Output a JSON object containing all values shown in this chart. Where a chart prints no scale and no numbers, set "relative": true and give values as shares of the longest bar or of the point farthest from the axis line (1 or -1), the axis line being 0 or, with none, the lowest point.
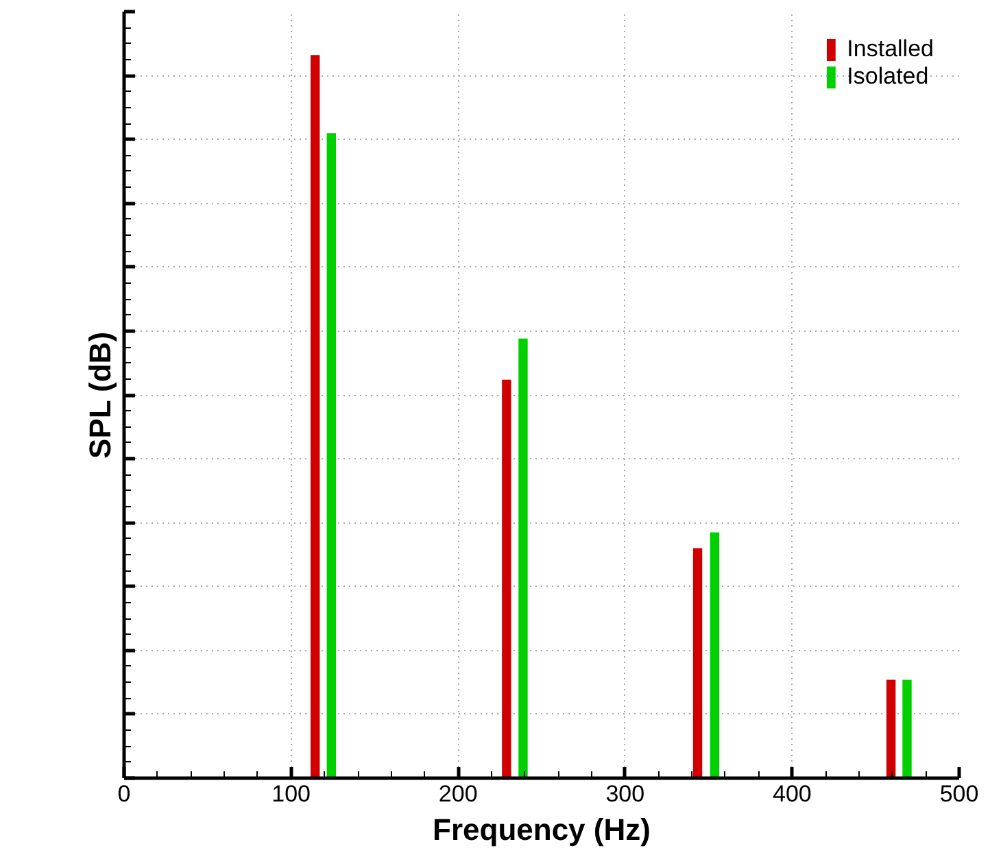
{
  "chart_data": {
    "type": "bar",
    "relative": true,
    "xlabel": "Frequency (Hz)",
    "ylabel": "SPL (dB)",
    "xlim": [
      0,
      500
    ],
    "xticks": [
      0,
      100,
      200,
      300,
      400,
      500
    ],
    "series": [
      {
        "name": "Installed",
        "color": "#d00000",
        "x": [
          114.4,
          229,
          343.4,
          459.2
        ],
        "values": [
          1,
          0.551,
          0.318,
          0.136
        ]
      },
      {
        "name": "Isolated",
        "color": "#00d000",
        "x": [
          124.1,
          238.9,
          353.6,
          468.8
        ],
        "values": [
          0.892,
          0.608,
          0.34,
          0.136
        ]
      }
    ],
    "grid": true,
    "legend": "top right",
    "tick_labels": "x"
  }
}
